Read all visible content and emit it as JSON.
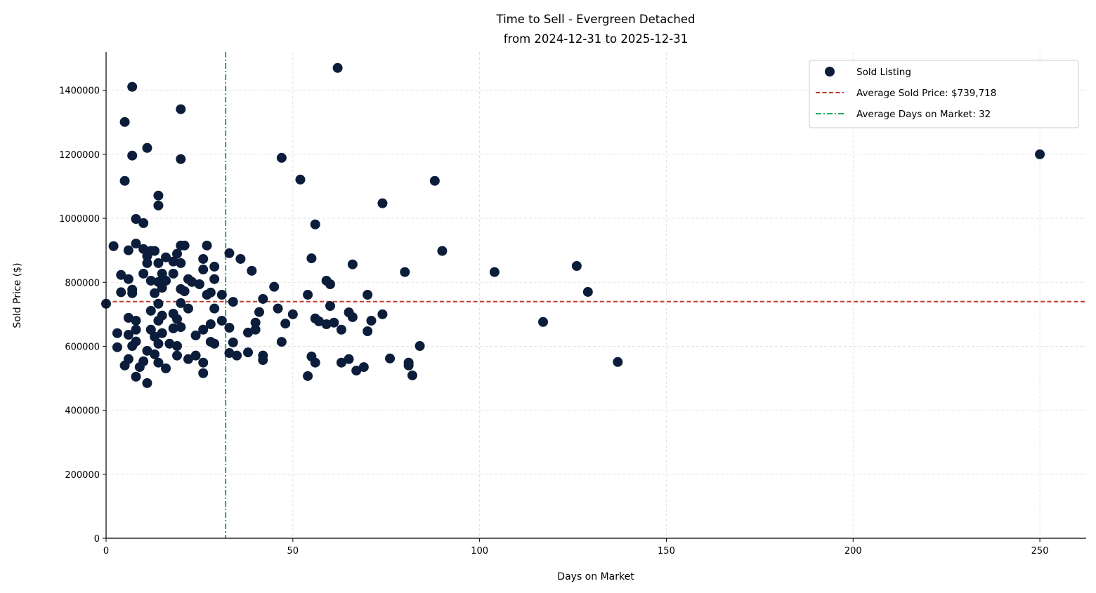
{
  "chart_data": {
    "type": "scatter",
    "title": "Time to Sell - Evergreen Detached",
    "subtitle": "from 2024-12-31 to 2025-12-31",
    "xlabel": "Days on Market",
    "ylabel": "Sold Price ($)",
    "xlim": [
      0,
      262.4
    ],
    "ylim": [
      0,
      1520000
    ],
    "xticks": [
      0,
      50,
      100,
      150,
      200,
      250
    ],
    "yticks": [
      0,
      200000,
      400000,
      600000,
      800000,
      1000000,
      1200000,
      1400000
    ],
    "grid": true,
    "legend_placement": "top-right",
    "colors": {
      "points": "#0b1d3a",
      "avg_price": "#c0392b",
      "avg_days": "#27ae60"
    },
    "series": [
      {
        "name": "Sold Listing",
        "points": [
          [
            0,
            733000
          ],
          [
            2,
            913000
          ],
          [
            3,
            641000
          ],
          [
            3,
            597000
          ],
          [
            4,
            823000
          ],
          [
            4,
            769000
          ],
          [
            5,
            1301000
          ],
          [
            5,
            1117000
          ],
          [
            5,
            540000
          ],
          [
            6,
            900000
          ],
          [
            6,
            810000
          ],
          [
            6,
            689000
          ],
          [
            6,
            636000
          ],
          [
            6,
            560000
          ],
          [
            7,
            1411000
          ],
          [
            7,
            1196000
          ],
          [
            7,
            777000
          ],
          [
            7,
            766000
          ],
          [
            7,
            601000
          ],
          [
            8,
            998000
          ],
          [
            8,
            921000
          ],
          [
            8,
            680000
          ],
          [
            8,
            652000
          ],
          [
            8,
            615000
          ],
          [
            8,
            505000
          ],
          [
            9,
            535000
          ],
          [
            10,
            985000
          ],
          [
            10,
            904000
          ],
          [
            10,
            827000
          ],
          [
            11,
            1220000
          ],
          [
            11,
            882000
          ],
          [
            11,
            860000
          ],
          [
            11,
            586000
          ],
          [
            11,
            485000
          ],
          [
            10,
            553000
          ],
          [
            12,
            898000
          ],
          [
            12,
            805000
          ],
          [
            12,
            711000
          ],
          [
            12,
            652000
          ],
          [
            13,
            898000
          ],
          [
            13,
            766000
          ],
          [
            13,
            630000
          ],
          [
            13,
            575000
          ],
          [
            14,
            1071000
          ],
          [
            14,
            1040000
          ],
          [
            14,
            860000
          ],
          [
            14,
            801000
          ],
          [
            14,
            733000
          ],
          [
            14,
            680000
          ],
          [
            14,
            608000
          ],
          [
            14,
            549000
          ],
          [
            15,
            827000
          ],
          [
            15,
            783000
          ],
          [
            15,
            696000
          ],
          [
            15,
            641000
          ],
          [
            16,
            878000
          ],
          [
            16,
            805000
          ],
          [
            16,
            531000
          ],
          [
            17,
            608000
          ],
          [
            18,
            865000
          ],
          [
            18,
            827000
          ],
          [
            18,
            702000
          ],
          [
            18,
            656000
          ],
          [
            19,
            889000
          ],
          [
            19,
            685000
          ],
          [
            19,
            601000
          ],
          [
            19,
            571000
          ],
          [
            20,
            1341000
          ],
          [
            20,
            1185000
          ],
          [
            20,
            915000
          ],
          [
            20,
            860000
          ],
          [
            20,
            779000
          ],
          [
            20,
            735000
          ],
          [
            20,
            660000
          ],
          [
            21,
            915000
          ],
          [
            21,
            772000
          ],
          [
            22,
            810000
          ],
          [
            22,
            718000
          ],
          [
            22,
            560000
          ],
          [
            23,
            801000
          ],
          [
            24,
            634000
          ],
          [
            24,
            571000
          ],
          [
            25,
            794000
          ],
          [
            26,
            873000
          ],
          [
            26,
            840000
          ],
          [
            26,
            652000
          ],
          [
            26,
            549000
          ],
          [
            26,
            516000
          ],
          [
            27,
            915000
          ],
          [
            27,
            761000
          ],
          [
            28,
            768000
          ],
          [
            28,
            669000
          ],
          [
            28,
            614000
          ],
          [
            29,
            849000
          ],
          [
            29,
            810000
          ],
          [
            29,
            718000
          ],
          [
            29,
            608000
          ],
          [
            31,
            761000
          ],
          [
            31,
            680000
          ],
          [
            33,
            891000
          ],
          [
            33,
            658000
          ],
          [
            33,
            579000
          ],
          [
            34,
            739000
          ],
          [
            34,
            612000
          ],
          [
            35,
            571000
          ],
          [
            36,
            873000
          ],
          [
            38,
            643000
          ],
          [
            38,
            581000
          ],
          [
            39,
            836000
          ],
          [
            40,
            652000
          ],
          [
            40,
            674000
          ],
          [
            41,
            707000
          ],
          [
            42,
            748000
          ],
          [
            42,
            571000
          ],
          [
            42,
            557000
          ],
          [
            45,
            786000
          ],
          [
            46,
            718000
          ],
          [
            47,
            1189000
          ],
          [
            47,
            614000
          ],
          [
            48,
            671000
          ],
          [
            50,
            700000
          ],
          [
            52,
            1121000
          ],
          [
            54,
            761000
          ],
          [
            54,
            507000
          ],
          [
            55,
            875000
          ],
          [
            55,
            568000
          ],
          [
            56,
            981000
          ],
          [
            56,
            687000
          ],
          [
            56,
            549000
          ],
          [
            57,
            678000
          ],
          [
            59,
            805000
          ],
          [
            59,
            669000
          ],
          [
            60,
            794000
          ],
          [
            60,
            726000
          ],
          [
            61,
            674000
          ],
          [
            62,
            1470000
          ],
          [
            63,
            652000
          ],
          [
            63,
            549000
          ],
          [
            65,
            706000
          ],
          [
            65,
            560000
          ],
          [
            66,
            856000
          ],
          [
            66,
            691000
          ],
          [
            67,
            524000
          ],
          [
            69,
            535000
          ],
          [
            70,
            761000
          ],
          [
            70,
            647000
          ],
          [
            71,
            680000
          ],
          [
            74,
            1047000
          ],
          [
            74,
            700000
          ],
          [
            76,
            562000
          ],
          [
            80,
            832000
          ],
          [
            81,
            549000
          ],
          [
            81,
            540000
          ],
          [
            82,
            509000
          ],
          [
            84,
            601000
          ],
          [
            88,
            1117000
          ],
          [
            90,
            898000
          ],
          [
            104,
            832000
          ],
          [
            117,
            676000
          ],
          [
            126,
            851000
          ],
          [
            129,
            770000
          ],
          [
            137,
            551000
          ],
          [
            250,
            1200000
          ]
        ]
      }
    ],
    "reference_lines": {
      "avg_price": {
        "value": 739718,
        "label": "Average Sold Price: $739,718"
      },
      "avg_days": {
        "value": 32,
        "label": "Average Days on Market: 32"
      }
    }
  }
}
